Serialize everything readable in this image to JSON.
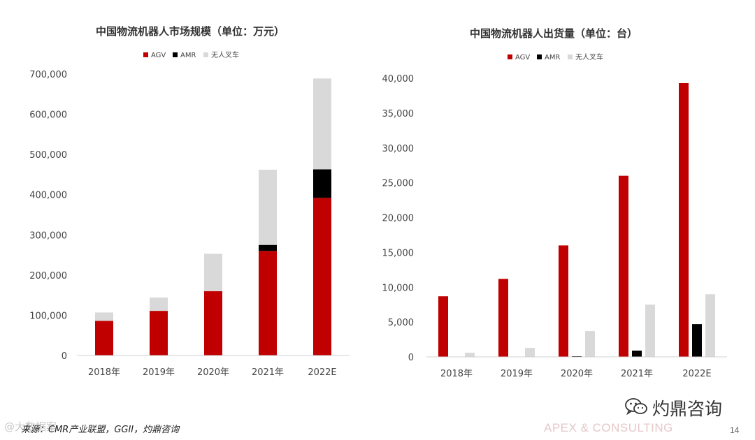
{
  "chart_data": [
    {
      "type": "bar",
      "stacked": true,
      "title": "中国物流机器人市场规模（单位：万元）",
      "categories": [
        "2018年",
        "2019年",
        "2020年",
        "2021年",
        "2022E"
      ],
      "series": [
        {
          "name": "AGV",
          "color": "#c00000",
          "values": [
            86000,
            111000,
            160000,
            260000,
            392000
          ]
        },
        {
          "name": "AMR",
          "color": "#000000",
          "values": [
            0,
            0,
            0,
            15000,
            71000
          ]
        },
        {
          "name": "无人叉车",
          "color": "#d9d9d9",
          "values": [
            21000,
            33000,
            93000,
            187000,
            226000
          ]
        }
      ],
      "ylim": [
        0,
        700000
      ],
      "yticks": [
        "0",
        "100,000",
        "200,000",
        "300,000",
        "400,000",
        "500,000",
        "600,000",
        "700,000"
      ],
      "legend_position": "top",
      "grid": false
    },
    {
      "type": "bar",
      "stacked": false,
      "title": "中国物流机器人出货量（单位：台）",
      "categories": [
        "2018年",
        "2019年",
        "2020年",
        "2021年",
        "2022E"
      ],
      "series": [
        {
          "name": "AGV",
          "color": "#c00000",
          "values": [
            8700,
            11200,
            16000,
            26000,
            39300
          ]
        },
        {
          "name": "AMR",
          "color": "#000000",
          "values": [
            0,
            0,
            100,
            900,
            4700
          ]
        },
        {
          "name": "无人叉车",
          "color": "#d9d9d9",
          "values": [
            600,
            1300,
            3700,
            7500,
            9000
          ]
        }
      ],
      "ylim": [
        0,
        40000
      ],
      "yticks": [
        "0",
        "5,000",
        "10,000",
        "15,000",
        "20,000",
        "25,000",
        "30,000",
        "35,000",
        "40,000"
      ],
      "legend_position": "top",
      "grid": false
    }
  ],
  "footer": {
    "source": "来源：CMR产业联盟，GGII，灼鼎咨询",
    "watermark": "@大数据案",
    "brand": "APEX & CONSULTING",
    "wechat_label": "灼鼎咨询",
    "page_number": "14"
  },
  "icons": {
    "wechat": "wechat-logo-icon"
  }
}
